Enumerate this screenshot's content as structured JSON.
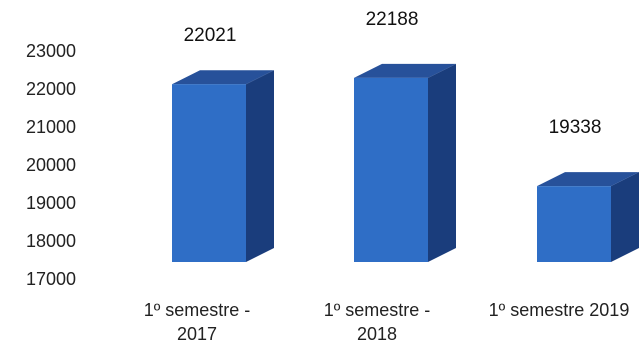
{
  "chart_data": {
    "type": "bar",
    "style": "3d-column",
    "categories": [
      [
        "1º semestre -",
        "2017"
      ],
      [
        "1º semestre -",
        "2018"
      ],
      [
        "1º semestre 2019"
      ]
    ],
    "values": [
      22021,
      22188,
      19338
    ],
    "data_labels": [
      "22021",
      "22188",
      "19338"
    ],
    "y_ticks": [
      23000,
      22000,
      21000,
      20000,
      19000,
      18000,
      17000
    ],
    "ylim": [
      17000,
      23000
    ],
    "grid": false,
    "legend": "none",
    "colors": {
      "front": "#2f6ec6",
      "side": "#1a3d7c",
      "top": "#27519a"
    }
  }
}
